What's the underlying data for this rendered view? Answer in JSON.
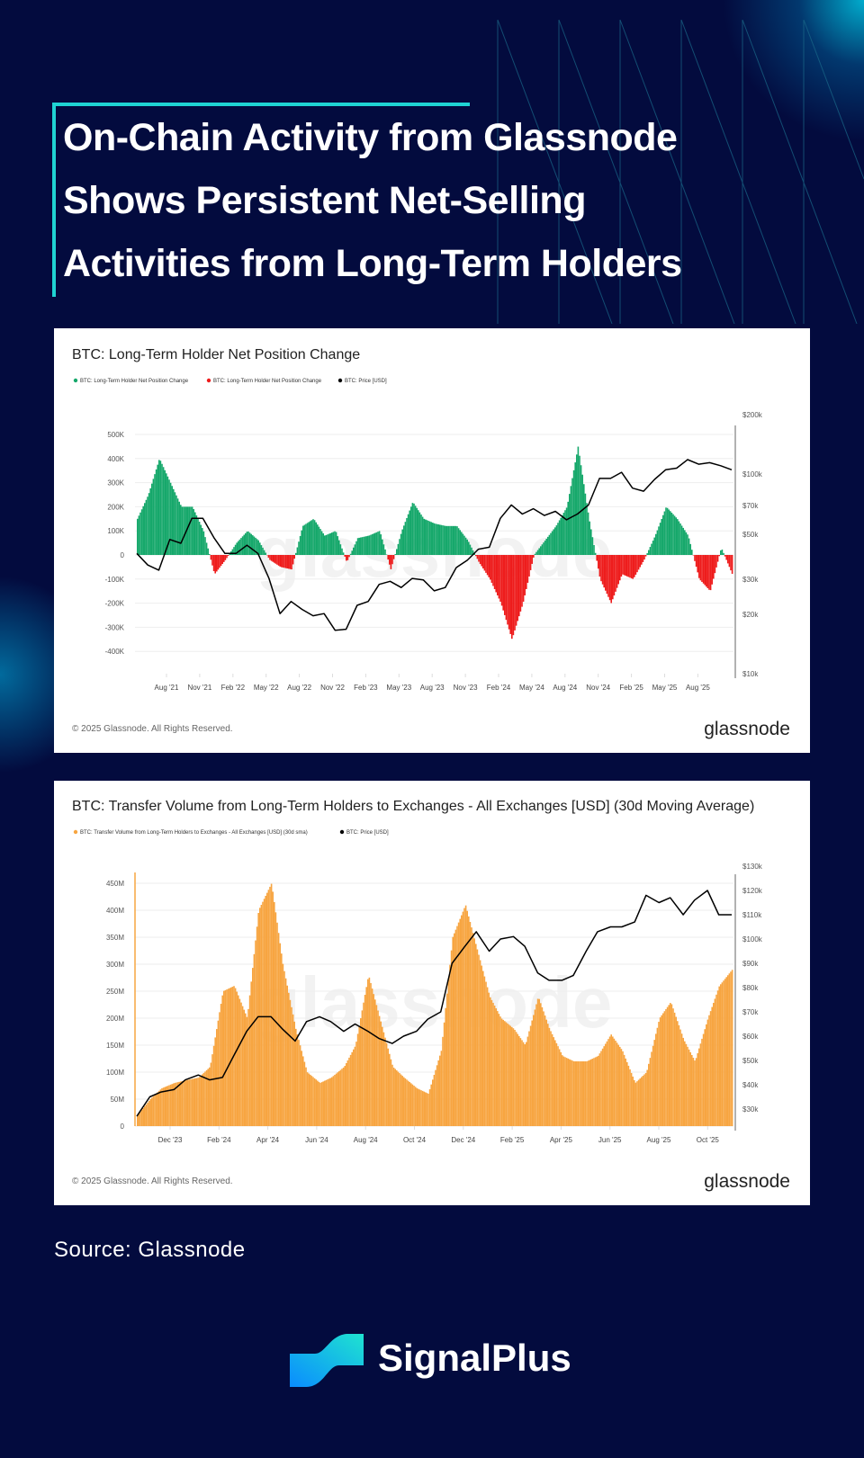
{
  "headline": [
    "On-Chain Activity from Glassnode",
    "Shows Persistent Net-Selling",
    "Activities from Long-Term Holders"
  ],
  "source": "Source: Glassnode",
  "brand": "SignalPlus",
  "colors": {
    "background": "#030b3e",
    "accent": "#1fd3d3",
    "green": "#16a86b",
    "red": "#ee1c1c",
    "orange": "#f7a541",
    "price": "#000000"
  },
  "chart_data": [
    {
      "type": "bar",
      "title": "BTC: Long-Term Holder Net Position Change",
      "legend": [
        "BTC: Long-Term Holder Net Position Change",
        "BTC: Long-Term Holder Net Position Change",
        "BTC: Price [USD]"
      ],
      "watermark": "glassnode",
      "footer": "© 2025 Glassnode. All Rights Reserved.",
      "logo": "glassnode",
      "y_left_ticks": [
        "500K",
        "400K",
        "300K",
        "200K",
        "100K",
        "0",
        "-100K",
        "-200K",
        "-300K",
        "-400K"
      ],
      "y_left_lim": [
        -500000,
        500000
      ],
      "y_right_ticks": [
        "$200k",
        "$100k",
        "$70k",
        "$50k",
        "$30k",
        "$20k",
        "$10k"
      ],
      "y_right_scale": "log",
      "y_right_lim": [
        10000,
        200000
      ],
      "x_ticks": [
        "Aug '21",
        "Nov '21",
        "Feb '22",
        "May '22",
        "Aug '22",
        "Nov '22",
        "Feb '23",
        "May '23",
        "Aug '23",
        "Nov '23",
        "Feb '24",
        "May '24",
        "Aug '24",
        "Nov '24",
        "Feb '25",
        "May '25",
        "Aug '25"
      ],
      "grid": true,
      "x": [
        "2021-05",
        "2021-06",
        "2021-07",
        "2021-08",
        "2021-09",
        "2021-10",
        "2021-11",
        "2021-12",
        "2022-01",
        "2022-02",
        "2022-03",
        "2022-04",
        "2022-05",
        "2022-06",
        "2022-07",
        "2022-08",
        "2022-09",
        "2022-10",
        "2022-11",
        "2022-12",
        "2023-01",
        "2023-02",
        "2023-03",
        "2023-04",
        "2023-05",
        "2023-06",
        "2023-07",
        "2023-08",
        "2023-09",
        "2023-10",
        "2023-11",
        "2023-12",
        "2024-01",
        "2024-02",
        "2024-03",
        "2024-04",
        "2024-05",
        "2024-06",
        "2024-07",
        "2024-08",
        "2024-09",
        "2024-10",
        "2024-11",
        "2024-12",
        "2025-01",
        "2025-02",
        "2025-03",
        "2025-04",
        "2025-05",
        "2025-06",
        "2025-07",
        "2025-08",
        "2025-09",
        "2025-10",
        "2025-11"
      ],
      "series": [
        {
          "name": "BTC: Long-Term Holder Net Position Change",
          "values": [
            150000,
            250000,
            400000,
            300000,
            200000,
            200000,
            100000,
            -80000,
            -20000,
            50000,
            100000,
            60000,
            -20000,
            -50000,
            -60000,
            120000,
            150000,
            80000,
            100000,
            -30000,
            70000,
            80000,
            100000,
            -60000,
            100000,
            220000,
            150000,
            130000,
            120000,
            120000,
            60000,
            -30000,
            -100000,
            -200000,
            -350000,
            -200000,
            0,
            60000,
            120000,
            200000,
            450000,
            150000,
            -100000,
            -200000,
            -80000,
            -100000,
            -20000,
            80000,
            200000,
            150000,
            80000,
            -100000,
            -150000,
            30000,
            -80000
          ]
        },
        {
          "name": "BTC: Price [USD]",
          "values": [
            40000,
            35000,
            33000,
            47000,
            45000,
            60000,
            60000,
            48000,
            40000,
            40000,
            44000,
            40000,
            30000,
            20000,
            23000,
            21000,
            19500,
            20000,
            16500,
            16700,
            22000,
            23000,
            28000,
            29000,
            27000,
            30000,
            29500,
            26000,
            27000,
            34000,
            37000,
            42000,
            43000,
            60000,
            70000,
            63000,
            67000,
            62000,
            65000,
            59000,
            63000,
            70000,
            95000,
            95000,
            102000,
            85000,
            82000,
            94000,
            105000,
            107000,
            118000,
            112000,
            114000,
            110000,
            105000
          ]
        }
      ]
    },
    {
      "type": "bar",
      "title": "BTC: Transfer Volume from Long-Term Holders to Exchanges - All Exchanges [USD] (30d Moving Average)",
      "legend": [
        "BTC: Transfer Volume from Long-Term Holders to Exchanges - All Exchanges [USD] (30d sma)",
        "BTC: Price [USD]"
      ],
      "watermark": "glassnode",
      "footer": "© 2025 Glassnode. All Rights Reserved.",
      "logo": "glassnode",
      "y_left_ticks": [
        "450M",
        "400M",
        "350M",
        "300M",
        "250M",
        "200M",
        "150M",
        "100M",
        "50M",
        "0"
      ],
      "y_left_lim": [
        0,
        470000000
      ],
      "y_right_ticks": [
        "$130k",
        "$120k",
        "$110k",
        "$100k",
        "$90k",
        "$80k",
        "$70k",
        "$60k",
        "$50k",
        "$40k",
        "$30k"
      ],
      "y_right_scale": "linear",
      "y_right_lim": [
        20000,
        130000
      ],
      "x_ticks": [
        "Dec '23",
        "Feb '24",
        "Apr '24",
        "Jun '24",
        "Aug '24",
        "Oct '24",
        "Dec '24",
        "Feb '25",
        "Apr '25",
        "Jun '25",
        "Aug '25",
        "Oct '25"
      ],
      "grid": true,
      "x": [
        "2023-10-15",
        "2023-11-01",
        "2023-11-15",
        "2023-12-01",
        "2023-12-15",
        "2024-01-01",
        "2024-01-15",
        "2024-02-01",
        "2024-02-15",
        "2024-03-01",
        "2024-03-15",
        "2024-04-01",
        "2024-04-15",
        "2024-05-01",
        "2024-05-15",
        "2024-06-01",
        "2024-06-15",
        "2024-07-01",
        "2024-07-15",
        "2024-08-01",
        "2024-08-15",
        "2024-09-01",
        "2024-09-15",
        "2024-10-01",
        "2024-10-15",
        "2024-11-01",
        "2024-11-15",
        "2024-12-01",
        "2024-12-15",
        "2025-01-01",
        "2025-01-15",
        "2025-02-01",
        "2025-02-15",
        "2025-03-01",
        "2025-03-15",
        "2025-04-01",
        "2025-04-15",
        "2025-05-01",
        "2025-05-15",
        "2025-06-01",
        "2025-06-15",
        "2025-07-01",
        "2025-07-15",
        "2025-08-01",
        "2025-08-15",
        "2025-09-01",
        "2025-09-15",
        "2025-10-01",
        "2025-10-15",
        "2025-10-31"
      ],
      "series": [
        {
          "name": "BTC: Transfer Volume from Long-Term Holders to Exchanges - All Exchanges [USD] (30d sma)",
          "values": [
            20000000,
            50000000,
            70000000,
            80000000,
            85000000,
            90000000,
            110000000,
            250000000,
            260000000,
            200000000,
            400000000,
            450000000,
            300000000,
            180000000,
            100000000,
            80000000,
            90000000,
            110000000,
            150000000,
            280000000,
            200000000,
            110000000,
            90000000,
            70000000,
            60000000,
            140000000,
            350000000,
            410000000,
            330000000,
            240000000,
            200000000,
            180000000,
            150000000,
            240000000,
            180000000,
            130000000,
            120000000,
            120000000,
            130000000,
            170000000,
            140000000,
            80000000,
            100000000,
            200000000,
            230000000,
            160000000,
            120000000,
            200000000,
            260000000,
            290000000
          ]
        },
        {
          "name": "BTC: Price [USD]",
          "values": [
            27000,
            35000,
            37000,
            38000,
            42000,
            44000,
            42000,
            43000,
            52000,
            62000,
            68000,
            68000,
            63000,
            58000,
            66000,
            68000,
            66000,
            62000,
            65000,
            62000,
            59000,
            57000,
            60000,
            62000,
            67000,
            70000,
            90000,
            97000,
            103000,
            95000,
            100000,
            101000,
            97000,
            86000,
            83000,
            83000,
            85000,
            95000,
            103000,
            105000,
            105000,
            107000,
            118000,
            115000,
            117000,
            110000,
            116000,
            120000,
            110000,
            110000
          ]
        }
      ]
    }
  ]
}
